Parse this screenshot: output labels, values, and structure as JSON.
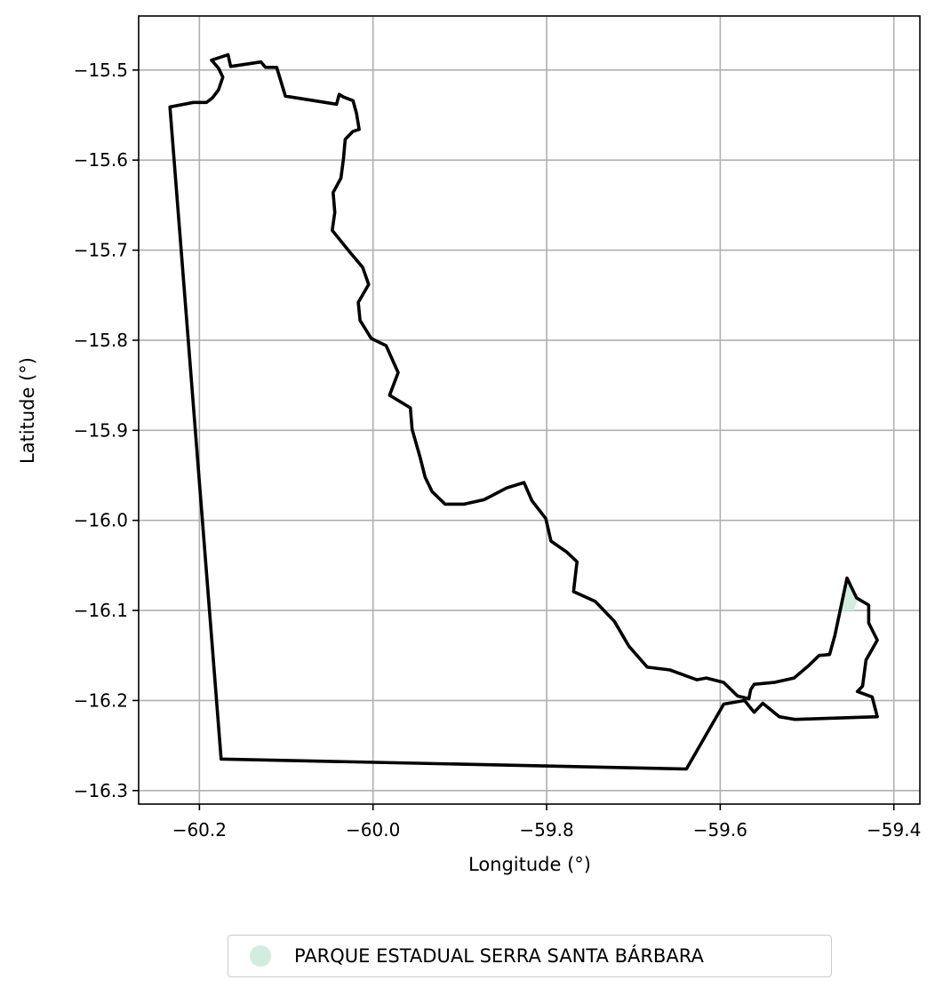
{
  "chart_data": {
    "type": "map",
    "xlabel": "Longitude (°)",
    "ylabel": "Latitude (°)",
    "xlim": [
      -60.27,
      -59.37
    ],
    "ylim": [
      -16.315,
      -15.44
    ],
    "x_ticks": [
      -60.2,
      -60.0,
      -59.8,
      -59.6,
      -59.4
    ],
    "x_tick_labels": [
      "−60.2",
      "−60.0",
      "−59.8",
      "−59.6",
      "−59.4"
    ],
    "y_ticks": [
      -15.5,
      -15.6,
      -15.7,
      -15.8,
      -15.9,
      -16.0,
      -16.1,
      -16.2,
      -16.3
    ],
    "y_tick_labels": [
      "−15.5",
      "−15.6",
      "−15.7",
      "−15.8",
      "−15.9",
      "−16.0",
      "−16.1",
      "−16.2",
      "−16.3"
    ],
    "grid": true,
    "legend_position": "bottom-center",
    "boundary": {
      "color": "#000000",
      "coordinates": [
        [
          -60.234,
          -15.541
        ],
        [
          -60.207,
          -15.536
        ],
        [
          -60.192,
          -15.536
        ],
        [
          -60.185,
          -15.531
        ],
        [
          -60.178,
          -15.522
        ],
        [
          -60.173,
          -15.508
        ],
        [
          -60.178,
          -15.498
        ],
        [
          -60.186,
          -15.489
        ],
        [
          -60.167,
          -15.483
        ],
        [
          -60.164,
          -15.496
        ],
        [
          -60.129,
          -15.491
        ],
        [
          -60.124,
          -15.497
        ],
        [
          -60.111,
          -15.497
        ],
        [
          -60.101,
          -15.529
        ],
        [
          -60.042,
          -15.538
        ],
        [
          -60.039,
          -15.527
        ],
        [
          -60.034,
          -15.53
        ],
        [
          -60.023,
          -15.534
        ],
        [
          -60.019,
          -15.548
        ],
        [
          -60.016,
          -15.566
        ],
        [
          -60.023,
          -15.568
        ],
        [
          -60.032,
          -15.577
        ],
        [
          -60.034,
          -15.598
        ],
        [
          -60.037,
          -15.62
        ],
        [
          -60.046,
          -15.636
        ],
        [
          -60.044,
          -15.658
        ],
        [
          -60.047,
          -15.678
        ],
        [
          -60.037,
          -15.69
        ],
        [
          -60.026,
          -15.703
        ],
        [
          -60.012,
          -15.719
        ],
        [
          -60.005,
          -15.738
        ],
        [
          -60.017,
          -15.758
        ],
        [
          -60.015,
          -15.778
        ],
        [
          -60.002,
          -15.798
        ],
        [
          -59.985,
          -15.806
        ],
        [
          -59.971,
          -15.836
        ],
        [
          -59.981,
          -15.861
        ],
        [
          -59.957,
          -15.875
        ],
        [
          -59.955,
          -15.899
        ],
        [
          -59.946,
          -15.929
        ],
        [
          -59.94,
          -15.952
        ],
        [
          -59.932,
          -15.968
        ],
        [
          -59.917,
          -15.982
        ],
        [
          -59.895,
          -15.982
        ],
        [
          -59.872,
          -15.977
        ],
        [
          -59.846,
          -15.964
        ],
        [
          -59.826,
          -15.958
        ],
        [
          -59.817,
          -15.978
        ],
        [
          -59.801,
          -15.998
        ],
        [
          -59.795,
          -16.023
        ],
        [
          -59.777,
          -16.035
        ],
        [
          -59.765,
          -16.046
        ],
        [
          -59.769,
          -16.079
        ],
        [
          -59.744,
          -16.09
        ],
        [
          -59.722,
          -16.112
        ],
        [
          -59.705,
          -16.14
        ],
        [
          -59.684,
          -16.163
        ],
        [
          -59.658,
          -16.166
        ],
        [
          -59.627,
          -16.177
        ],
        [
          -59.616,
          -16.175
        ],
        [
          -59.596,
          -16.18
        ],
        [
          -59.58,
          -16.195
        ],
        [
          -59.567,
          -16.198
        ],
        [
          -59.565,
          -16.188
        ],
        [
          -59.561,
          -16.182
        ],
        [
          -59.538,
          -16.18
        ],
        [
          -59.515,
          -16.175
        ],
        [
          -59.499,
          -16.162
        ],
        [
          -59.486,
          -16.15
        ],
        [
          -59.474,
          -16.149
        ],
        [
          -59.468,
          -16.128
        ],
        [
          -59.454,
          -16.064
        ],
        [
          -59.443,
          -16.086
        ],
        [
          -59.429,
          -16.094
        ],
        [
          -59.429,
          -16.114
        ],
        [
          -59.419,
          -16.133
        ],
        [
          -59.432,
          -16.155
        ],
        [
          -59.436,
          -16.184
        ],
        [
          -59.442,
          -16.19
        ],
        [
          -59.425,
          -16.196
        ],
        [
          -59.419,
          -16.218
        ],
        [
          -59.514,
          -16.221
        ],
        [
          -59.532,
          -16.218
        ],
        [
          -59.551,
          -16.203
        ],
        [
          -59.561,
          -16.213
        ],
        [
          -59.572,
          -16.2
        ],
        [
          -59.596,
          -16.204
        ],
        [
          -59.639,
          -16.276
        ],
        [
          -60.175,
          -16.265
        ],
        [
          -60.234,
          -15.541
        ]
      ]
    },
    "series": [
      {
        "name": "PARQUE ESTADUAL SERRA SANTA BÁRBARA",
        "color": "#d2ede0",
        "coordinates": [
          [
            -59.455,
            -16.065
          ],
          [
            -59.442,
            -16.088
          ],
          [
            -59.446,
            -16.1
          ],
          [
            -59.46,
            -16.1
          ],
          [
            -59.455,
            -16.065
          ]
        ]
      }
    ]
  }
}
